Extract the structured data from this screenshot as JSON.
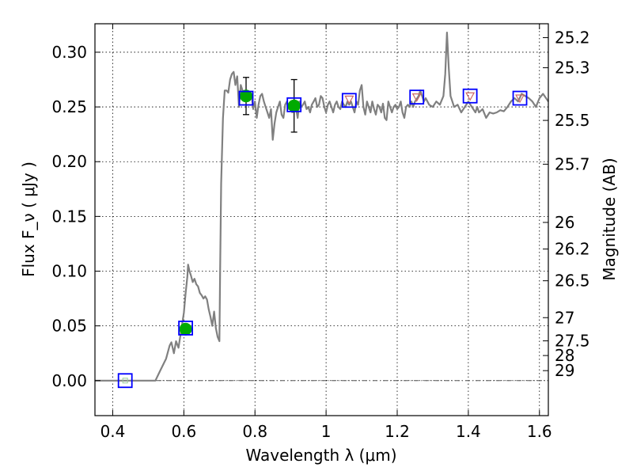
{
  "chart_data": {
    "type": "scatter",
    "title": "",
    "xlabel": "Wavelength  λ (μm)",
    "ylabel": "Flux  F_ν  ( μJy )",
    "y2label": "Magnitude (AB)",
    "xlim": [
      0.35,
      1.625
    ],
    "ylim": [
      -0.032,
      0.326
    ],
    "grid": true,
    "xticks": [
      {
        "value": 0.4,
        "label": "0.4"
      },
      {
        "value": 0.6,
        "label": "0.6"
      },
      {
        "value": 0.8,
        "label": "0.8"
      },
      {
        "value": 1.0,
        "label": "1"
      },
      {
        "value": 1.2,
        "label": "1.2"
      },
      {
        "value": 1.4,
        "label": "1.4"
      },
      {
        "value": 1.6,
        "label": "1.6"
      }
    ],
    "yticks": [
      {
        "value": 0.0,
        "label": "0.00"
      },
      {
        "value": 0.05,
        "label": "0.05"
      },
      {
        "value": 0.1,
        "label": "0.10"
      },
      {
        "value": 0.15,
        "label": "0.15"
      },
      {
        "value": 0.2,
        "label": "0.20"
      },
      {
        "value": 0.25,
        "label": "0.25"
      },
      {
        "value": 0.3,
        "label": "0.30"
      }
    ],
    "y2ticks": [
      {
        "label": "25.2",
        "flux": 0.3133
      },
      {
        "label": "25.3",
        "flux": 0.2858
      },
      {
        "label": "25.5",
        "flux": 0.2377
      },
      {
        "label": "25.7",
        "flux": 0.1977
      },
      {
        "label": "26",
        "flux": 0.1445
      },
      {
        "label": "26.2",
        "flux": 0.1202
      },
      {
        "label": "26.5",
        "flux": 0.0912
      },
      {
        "label": "27",
        "flux": 0.0575
      },
      {
        "label": "27.5",
        "flux": 0.0363
      },
      {
        "label": "28",
        "flux": 0.0229
      },
      {
        "label": "29",
        "flux": 0.0091
      }
    ],
    "series": [
      {
        "kind": "model_spectrum",
        "color": "#808080",
        "points": [
          [
            0.35,
            0.0
          ],
          [
            0.52,
            0.0
          ],
          [
            0.535,
            0.01
          ],
          [
            0.55,
            0.02
          ],
          [
            0.56,
            0.032
          ],
          [
            0.565,
            0.035
          ],
          [
            0.572,
            0.025
          ],
          [
            0.578,
            0.036
          ],
          [
            0.585,
            0.03
          ],
          [
            0.592,
            0.045
          ],
          [
            0.6,
            0.062
          ],
          [
            0.605,
            0.08
          ],
          [
            0.61,
            0.095
          ],
          [
            0.612,
            0.106
          ],
          [
            0.616,
            0.1
          ],
          [
            0.62,
            0.096
          ],
          [
            0.625,
            0.09
          ],
          [
            0.63,
            0.093
          ],
          [
            0.635,
            0.088
          ],
          [
            0.64,
            0.086
          ],
          [
            0.645,
            0.08
          ],
          [
            0.65,
            0.078
          ],
          [
            0.655,
            0.075
          ],
          [
            0.66,
            0.077
          ],
          [
            0.665,
            0.074
          ],
          [
            0.67,
            0.065
          ],
          [
            0.675,
            0.058
          ],
          [
            0.68,
            0.05
          ],
          [
            0.685,
            0.063
          ],
          [
            0.69,
            0.048
          ],
          [
            0.695,
            0.04
          ],
          [
            0.7,
            0.036
          ],
          [
            0.702,
            0.1
          ],
          [
            0.705,
            0.18
          ],
          [
            0.71,
            0.24
          ],
          [
            0.715,
            0.265
          ],
          [
            0.72,
            0.265
          ],
          [
            0.725,
            0.263
          ],
          [
            0.73,
            0.275
          ],
          [
            0.735,
            0.28
          ],
          [
            0.74,
            0.282
          ],
          [
            0.745,
            0.27
          ],
          [
            0.75,
            0.278
          ],
          [
            0.755,
            0.25
          ],
          [
            0.76,
            0.27
          ],
          [
            0.765,
            0.265
          ],
          [
            0.77,
            0.262
          ],
          [
            0.775,
            0.255
          ],
          [
            0.78,
            0.26
          ],
          [
            0.785,
            0.258
          ],
          [
            0.79,
            0.262
          ],
          [
            0.795,
            0.248
          ],
          [
            0.8,
            0.255
          ],
          [
            0.805,
            0.24
          ],
          [
            0.81,
            0.252
          ],
          [
            0.815,
            0.26
          ],
          [
            0.82,
            0.262
          ],
          [
            0.825,
            0.255
          ],
          [
            0.83,
            0.25
          ],
          [
            0.835,
            0.245
          ],
          [
            0.84,
            0.24
          ],
          [
            0.845,
            0.248
          ],
          [
            0.85,
            0.22
          ],
          [
            0.855,
            0.235
          ],
          [
            0.86,
            0.245
          ],
          [
            0.865,
            0.25
          ],
          [
            0.87,
            0.255
          ],
          [
            0.875,
            0.243
          ],
          [
            0.88,
            0.24
          ],
          [
            0.885,
            0.252
          ],
          [
            0.89,
            0.255
          ],
          [
            0.895,
            0.248
          ],
          [
            0.9,
            0.25
          ],
          [
            0.905,
            0.245
          ],
          [
            0.91,
            0.247
          ],
          [
            0.915,
            0.25
          ],
          [
            0.92,
            0.24
          ],
          [
            0.925,
            0.255
          ],
          [
            0.93,
            0.25
          ],
          [
            0.935,
            0.252
          ],
          [
            0.94,
            0.255
          ],
          [
            0.945,
            0.248
          ],
          [
            0.95,
            0.25
          ],
          [
            0.955,
            0.245
          ],
          [
            0.96,
            0.252
          ],
          [
            0.965,
            0.255
          ],
          [
            0.97,
            0.258
          ],
          [
            0.975,
            0.25
          ],
          [
            0.98,
            0.252
          ],
          [
            0.985,
            0.26
          ],
          [
            0.99,
            0.258
          ],
          [
            0.995,
            0.25
          ],
          [
            1.0,
            0.245
          ],
          [
            1.005,
            0.252
          ],
          [
            1.01,
            0.255
          ],
          [
            1.015,
            0.25
          ],
          [
            1.02,
            0.245
          ],
          [
            1.025,
            0.252
          ],
          [
            1.03,
            0.255
          ],
          [
            1.035,
            0.25
          ],
          [
            1.04,
            0.248
          ],
          [
            1.045,
            0.255
          ],
          [
            1.05,
            0.252
          ],
          [
            1.055,
            0.25
          ],
          [
            1.06,
            0.255
          ],
          [
            1.065,
            0.252
          ],
          [
            1.07,
            0.255
          ],
          [
            1.075,
            0.25
          ],
          [
            1.08,
            0.245
          ],
          [
            1.085,
            0.255
          ],
          [
            1.09,
            0.252
          ],
          [
            1.095,
            0.265
          ],
          [
            1.1,
            0.27
          ],
          [
            1.105,
            0.25
          ],
          [
            1.11,
            0.243
          ],
          [
            1.115,
            0.255
          ],
          [
            1.12,
            0.25
          ],
          [
            1.125,
            0.245
          ],
          [
            1.13,
            0.255
          ],
          [
            1.135,
            0.248
          ],
          [
            1.14,
            0.243
          ],
          [
            1.145,
            0.252
          ],
          [
            1.15,
            0.25
          ],
          [
            1.155,
            0.245
          ],
          [
            1.16,
            0.253
          ],
          [
            1.165,
            0.24
          ],
          [
            1.17,
            0.238
          ],
          [
            1.175,
            0.255
          ],
          [
            1.18,
            0.25
          ],
          [
            1.185,
            0.245
          ],
          [
            1.19,
            0.25
          ],
          [
            1.195,
            0.252
          ],
          [
            1.2,
            0.248
          ],
          [
            1.205,
            0.25
          ],
          [
            1.21,
            0.255
          ],
          [
            1.215,
            0.245
          ],
          [
            1.22,
            0.24
          ],
          [
            1.225,
            0.25
          ],
          [
            1.23,
            0.252
          ],
          [
            1.235,
            0.25
          ],
          [
            1.24,
            0.255
          ],
          [
            1.245,
            0.25
          ],
          [
            1.25,
            0.255
          ],
          [
            1.26,
            0.26
          ],
          [
            1.265,
            0.265
          ],
          [
            1.27,
            0.26
          ],
          [
            1.275,
            0.255
          ],
          [
            1.28,
            0.258
          ],
          [
            1.29,
            0.252
          ],
          [
            1.3,
            0.25
          ],
          [
            1.31,
            0.255
          ],
          [
            1.32,
            0.252
          ],
          [
            1.33,
            0.26
          ],
          [
            1.335,
            0.28
          ],
          [
            1.34,
            0.318
          ],
          [
            1.345,
            0.285
          ],
          [
            1.35,
            0.26
          ],
          [
            1.355,
            0.255
          ],
          [
            1.36,
            0.25
          ],
          [
            1.37,
            0.252
          ],
          [
            1.38,
            0.245
          ],
          [
            1.39,
            0.25
          ],
          [
            1.4,
            0.255
          ],
          [
            1.41,
            0.25
          ],
          [
            1.42,
            0.245
          ],
          [
            1.425,
            0.25
          ],
          [
            1.43,
            0.245
          ],
          [
            1.44,
            0.248
          ],
          [
            1.45,
            0.24
          ],
          [
            1.46,
            0.245
          ],
          [
            1.47,
            0.244
          ],
          [
            1.48,
            0.245
          ],
          [
            1.49,
            0.247
          ],
          [
            1.5,
            0.246
          ],
          [
            1.51,
            0.25
          ],
          [
            1.52,
            0.255
          ],
          [
            1.53,
            0.258
          ],
          [
            1.54,
            0.255
          ],
          [
            1.55,
            0.262
          ],
          [
            1.56,
            0.26
          ],
          [
            1.57,
            0.258
          ],
          [
            1.58,
            0.255
          ],
          [
            1.59,
            0.25
          ],
          [
            1.6,
            0.258
          ],
          [
            1.61,
            0.262
          ],
          [
            1.625,
            0.255
          ]
        ]
      },
      {
        "kind": "model_photometry",
        "marker": "open-square",
        "color": "#0000ff",
        "points": [
          [
            0.435,
            0.0
          ],
          [
            0.605,
            0.048
          ],
          [
            0.775,
            0.258
          ],
          [
            0.91,
            0.252
          ],
          [
            1.065,
            0.256
          ],
          [
            1.255,
            0.259
          ],
          [
            1.405,
            0.26
          ],
          [
            1.545,
            0.258
          ]
        ]
      },
      {
        "kind": "observed_detections",
        "marker": "filled-circle",
        "color": "#00aa00",
        "points": [
          {
            "x": 0.605,
            "y": 0.047,
            "err": 0.0
          },
          {
            "x": 0.775,
            "y": 0.26,
            "err": 0.017
          },
          {
            "x": 0.91,
            "y": 0.251,
            "err": 0.024
          }
        ]
      },
      {
        "kind": "upper_limits",
        "marker": "triangle-down",
        "color": "#cc6666",
        "points": [
          [
            1.065,
            0.257
          ],
          [
            1.255,
            0.259
          ],
          [
            1.405,
            0.26
          ],
          [
            1.545,
            0.258
          ]
        ]
      },
      {
        "kind": "faint_marker",
        "marker": "small-square",
        "color": "#99cc99",
        "points": [
          [
            0.435,
            0.0
          ]
        ]
      }
    ],
    "reference_line": {
      "y": 0.0,
      "style": "dash-dot",
      "color": "#555555"
    }
  }
}
